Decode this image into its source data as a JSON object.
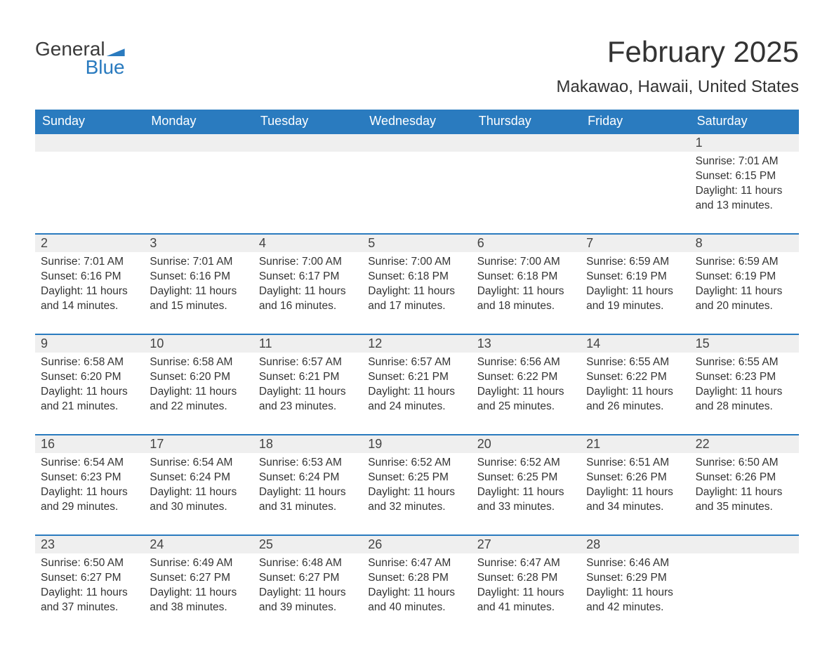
{
  "logo": {
    "word1": "General",
    "word2": "Blue"
  },
  "title": "February 2025",
  "location": "Makawao, Hawaii, United States",
  "colors": {
    "header_bg": "#2a7bbf",
    "header_text": "#ffffff",
    "daynum_bg": "#efefef",
    "week_divider": "#2a7bbf",
    "body_text": "#333333",
    "page_bg": "#ffffff"
  },
  "typography": {
    "title_fontsize": 42,
    "location_fontsize": 24,
    "dow_fontsize": 18,
    "daynum_fontsize": 18,
    "cell_fontsize": 15.5,
    "font_family": "Arial"
  },
  "dow": [
    "Sunday",
    "Monday",
    "Tuesday",
    "Wednesday",
    "Thursday",
    "Friday",
    "Saturday"
  ],
  "weeks": [
    [
      {
        "n": "",
        "sr": "",
        "ss": "",
        "dl": ""
      },
      {
        "n": "",
        "sr": "",
        "ss": "",
        "dl": ""
      },
      {
        "n": "",
        "sr": "",
        "ss": "",
        "dl": ""
      },
      {
        "n": "",
        "sr": "",
        "ss": "",
        "dl": ""
      },
      {
        "n": "",
        "sr": "",
        "ss": "",
        "dl": ""
      },
      {
        "n": "",
        "sr": "",
        "ss": "",
        "dl": ""
      },
      {
        "n": "1",
        "sr": "Sunrise: 7:01 AM",
        "ss": "Sunset: 6:15 PM",
        "dl": "Daylight: 11 hours and 13 minutes."
      }
    ],
    [
      {
        "n": "2",
        "sr": "Sunrise: 7:01 AM",
        "ss": "Sunset: 6:16 PM",
        "dl": "Daylight: 11 hours and 14 minutes."
      },
      {
        "n": "3",
        "sr": "Sunrise: 7:01 AM",
        "ss": "Sunset: 6:16 PM",
        "dl": "Daylight: 11 hours and 15 minutes."
      },
      {
        "n": "4",
        "sr": "Sunrise: 7:00 AM",
        "ss": "Sunset: 6:17 PM",
        "dl": "Daylight: 11 hours and 16 minutes."
      },
      {
        "n": "5",
        "sr": "Sunrise: 7:00 AM",
        "ss": "Sunset: 6:18 PM",
        "dl": "Daylight: 11 hours and 17 minutes."
      },
      {
        "n": "6",
        "sr": "Sunrise: 7:00 AM",
        "ss": "Sunset: 6:18 PM",
        "dl": "Daylight: 11 hours and 18 minutes."
      },
      {
        "n": "7",
        "sr": "Sunrise: 6:59 AM",
        "ss": "Sunset: 6:19 PM",
        "dl": "Daylight: 11 hours and 19 minutes."
      },
      {
        "n": "8",
        "sr": "Sunrise: 6:59 AM",
        "ss": "Sunset: 6:19 PM",
        "dl": "Daylight: 11 hours and 20 minutes."
      }
    ],
    [
      {
        "n": "9",
        "sr": "Sunrise: 6:58 AM",
        "ss": "Sunset: 6:20 PM",
        "dl": "Daylight: 11 hours and 21 minutes."
      },
      {
        "n": "10",
        "sr": "Sunrise: 6:58 AM",
        "ss": "Sunset: 6:20 PM",
        "dl": "Daylight: 11 hours and 22 minutes."
      },
      {
        "n": "11",
        "sr": "Sunrise: 6:57 AM",
        "ss": "Sunset: 6:21 PM",
        "dl": "Daylight: 11 hours and 23 minutes."
      },
      {
        "n": "12",
        "sr": "Sunrise: 6:57 AM",
        "ss": "Sunset: 6:21 PM",
        "dl": "Daylight: 11 hours and 24 minutes."
      },
      {
        "n": "13",
        "sr": "Sunrise: 6:56 AM",
        "ss": "Sunset: 6:22 PM",
        "dl": "Daylight: 11 hours and 25 minutes."
      },
      {
        "n": "14",
        "sr": "Sunrise: 6:55 AM",
        "ss": "Sunset: 6:22 PM",
        "dl": "Daylight: 11 hours and 26 minutes."
      },
      {
        "n": "15",
        "sr": "Sunrise: 6:55 AM",
        "ss": "Sunset: 6:23 PM",
        "dl": "Daylight: 11 hours and 28 minutes."
      }
    ],
    [
      {
        "n": "16",
        "sr": "Sunrise: 6:54 AM",
        "ss": "Sunset: 6:23 PM",
        "dl": "Daylight: 11 hours and 29 minutes."
      },
      {
        "n": "17",
        "sr": "Sunrise: 6:54 AM",
        "ss": "Sunset: 6:24 PM",
        "dl": "Daylight: 11 hours and 30 minutes."
      },
      {
        "n": "18",
        "sr": "Sunrise: 6:53 AM",
        "ss": "Sunset: 6:24 PM",
        "dl": "Daylight: 11 hours and 31 minutes."
      },
      {
        "n": "19",
        "sr": "Sunrise: 6:52 AM",
        "ss": "Sunset: 6:25 PM",
        "dl": "Daylight: 11 hours and 32 minutes."
      },
      {
        "n": "20",
        "sr": "Sunrise: 6:52 AM",
        "ss": "Sunset: 6:25 PM",
        "dl": "Daylight: 11 hours and 33 minutes."
      },
      {
        "n": "21",
        "sr": "Sunrise: 6:51 AM",
        "ss": "Sunset: 6:26 PM",
        "dl": "Daylight: 11 hours and 34 minutes."
      },
      {
        "n": "22",
        "sr": "Sunrise: 6:50 AM",
        "ss": "Sunset: 6:26 PM",
        "dl": "Daylight: 11 hours and 35 minutes."
      }
    ],
    [
      {
        "n": "23",
        "sr": "Sunrise: 6:50 AM",
        "ss": "Sunset: 6:27 PM",
        "dl": "Daylight: 11 hours and 37 minutes."
      },
      {
        "n": "24",
        "sr": "Sunrise: 6:49 AM",
        "ss": "Sunset: 6:27 PM",
        "dl": "Daylight: 11 hours and 38 minutes."
      },
      {
        "n": "25",
        "sr": "Sunrise: 6:48 AM",
        "ss": "Sunset: 6:27 PM",
        "dl": "Daylight: 11 hours and 39 minutes."
      },
      {
        "n": "26",
        "sr": "Sunrise: 6:47 AM",
        "ss": "Sunset: 6:28 PM",
        "dl": "Daylight: 11 hours and 40 minutes."
      },
      {
        "n": "27",
        "sr": "Sunrise: 6:47 AM",
        "ss": "Sunset: 6:28 PM",
        "dl": "Daylight: 11 hours and 41 minutes."
      },
      {
        "n": "28",
        "sr": "Sunrise: 6:46 AM",
        "ss": "Sunset: 6:29 PM",
        "dl": "Daylight: 11 hours and 42 minutes."
      },
      {
        "n": "",
        "sr": "",
        "ss": "",
        "dl": ""
      }
    ]
  ]
}
